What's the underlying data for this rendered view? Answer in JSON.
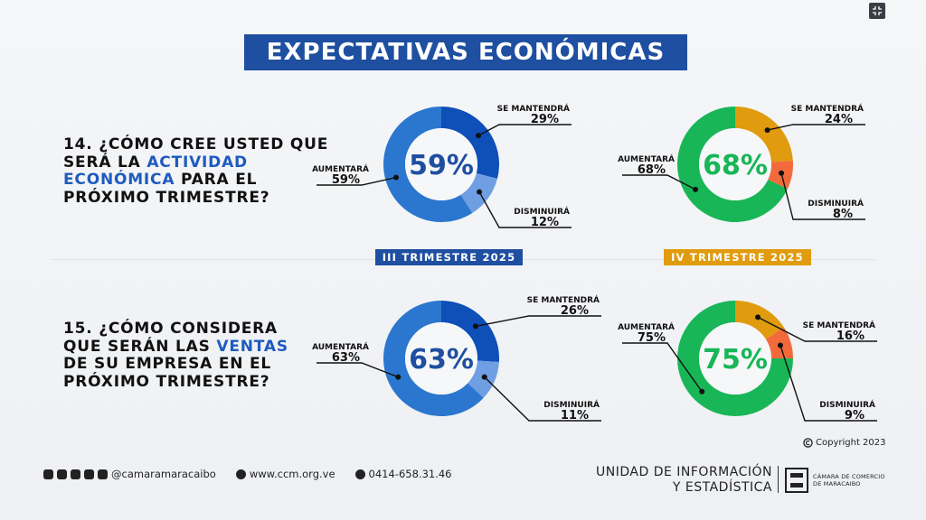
{
  "header": {
    "title": "EXPECTATIVAS ECONÓMICAS"
  },
  "questions": [
    {
      "parts": [
        {
          "text": "14. ¿CÓMO CREE USTED QUE",
          "hl": false
        },
        {
          "text": "SERÁ LA ",
          "hl": false,
          "join": true
        },
        {
          "text": "ACTIVIDAD",
          "hl": true
        },
        {
          "text": "ECONÓMICA",
          "hl": true,
          "join": true
        },
        {
          "text": " PARA EL",
          "hl": false
        },
        {
          "text": "PRÓXIMO TRIMESTRE?",
          "hl": false
        }
      ]
    },
    {
      "parts": [
        {
          "text": "15. ¿CÓMO CONSIDERA",
          "hl": false
        },
        {
          "text": "QUE SERÁN LAS ",
          "hl": false,
          "join": true
        },
        {
          "text": "VENTAS",
          "hl": true
        },
        {
          "text": "DE SU EMPRESA EN EL",
          "hl": false
        },
        {
          "text": "PRÓXIMO TRIMESTRE?",
          "hl": false
        }
      ]
    }
  ],
  "periods": [
    "III TRIMESTRE 2025",
    "IV TRIMESTRE 2025"
  ],
  "colors": {
    "iii": {
      "aumentara": "#2b77cf",
      "mantendra": "#0e4fb8",
      "disminuira": "#6f9ee2",
      "center": "#1e4fa0",
      "tag": "#1e4fa0"
    },
    "iv": {
      "aumentara": "#18b657",
      "mantendra": "#e09b0e",
      "disminuira": "#f26a3c",
      "center": "#18b657",
      "tag": "#e09b0e"
    }
  },
  "chart_data": [
    {
      "type": "pie",
      "title": "14. III TRIMESTRE 2025",
      "center_label": "59%",
      "categories": [
        "AUMENTARÁ",
        "SE MANTENDRÁ",
        "DISMINUIRÁ"
      ],
      "values": [
        59,
        29,
        12
      ],
      "labels": [
        "59%",
        "29%",
        "12%"
      ]
    },
    {
      "type": "pie",
      "title": "14. IV TRIMESTRE 2025",
      "center_label": "68%",
      "categories": [
        "AUMENTARÁ",
        "SE MANTENDRÁ",
        "DISMINUIRÁ"
      ],
      "values": [
        68,
        24,
        8
      ],
      "labels": [
        "68%",
        "24%",
        "8%"
      ]
    },
    {
      "type": "pie",
      "title": "15. III TRIMESTRE 2025",
      "center_label": "63%",
      "categories": [
        "AUMENTARÁ",
        "SE MANTENDRÁ",
        "DISMINUIRÁ"
      ],
      "values": [
        63,
        26,
        11
      ],
      "labels": [
        "63%",
        "26%",
        "11%"
      ]
    },
    {
      "type": "pie",
      "title": "15. IV TRIMESTRE 2025",
      "center_label": "75%",
      "categories": [
        "AUMENTARÁ",
        "SE MANTENDRÁ",
        "DISMINUIRÁ"
      ],
      "values": [
        75,
        16,
        9
      ],
      "labels": [
        "75%",
        "16%",
        "9%"
      ]
    }
  ],
  "footer": {
    "social_handle": "@camaramaracaibo",
    "website": "www.ccm.org.ve",
    "phone": "0414-658.31.46",
    "copyright": "Copyright 2023",
    "unit_line1": "UNIDAD DE INFORMACIÓN",
    "unit_line2": "Y ESTADÍSTICA",
    "camara_line1": "CÁMARA DE COMERCIO",
    "camara_line2": "DE MARACAIBO",
    "icons": [
      "instagram-icon",
      "facebook-icon",
      "youtube-icon",
      "threads-icon",
      "x-icon"
    ]
  }
}
